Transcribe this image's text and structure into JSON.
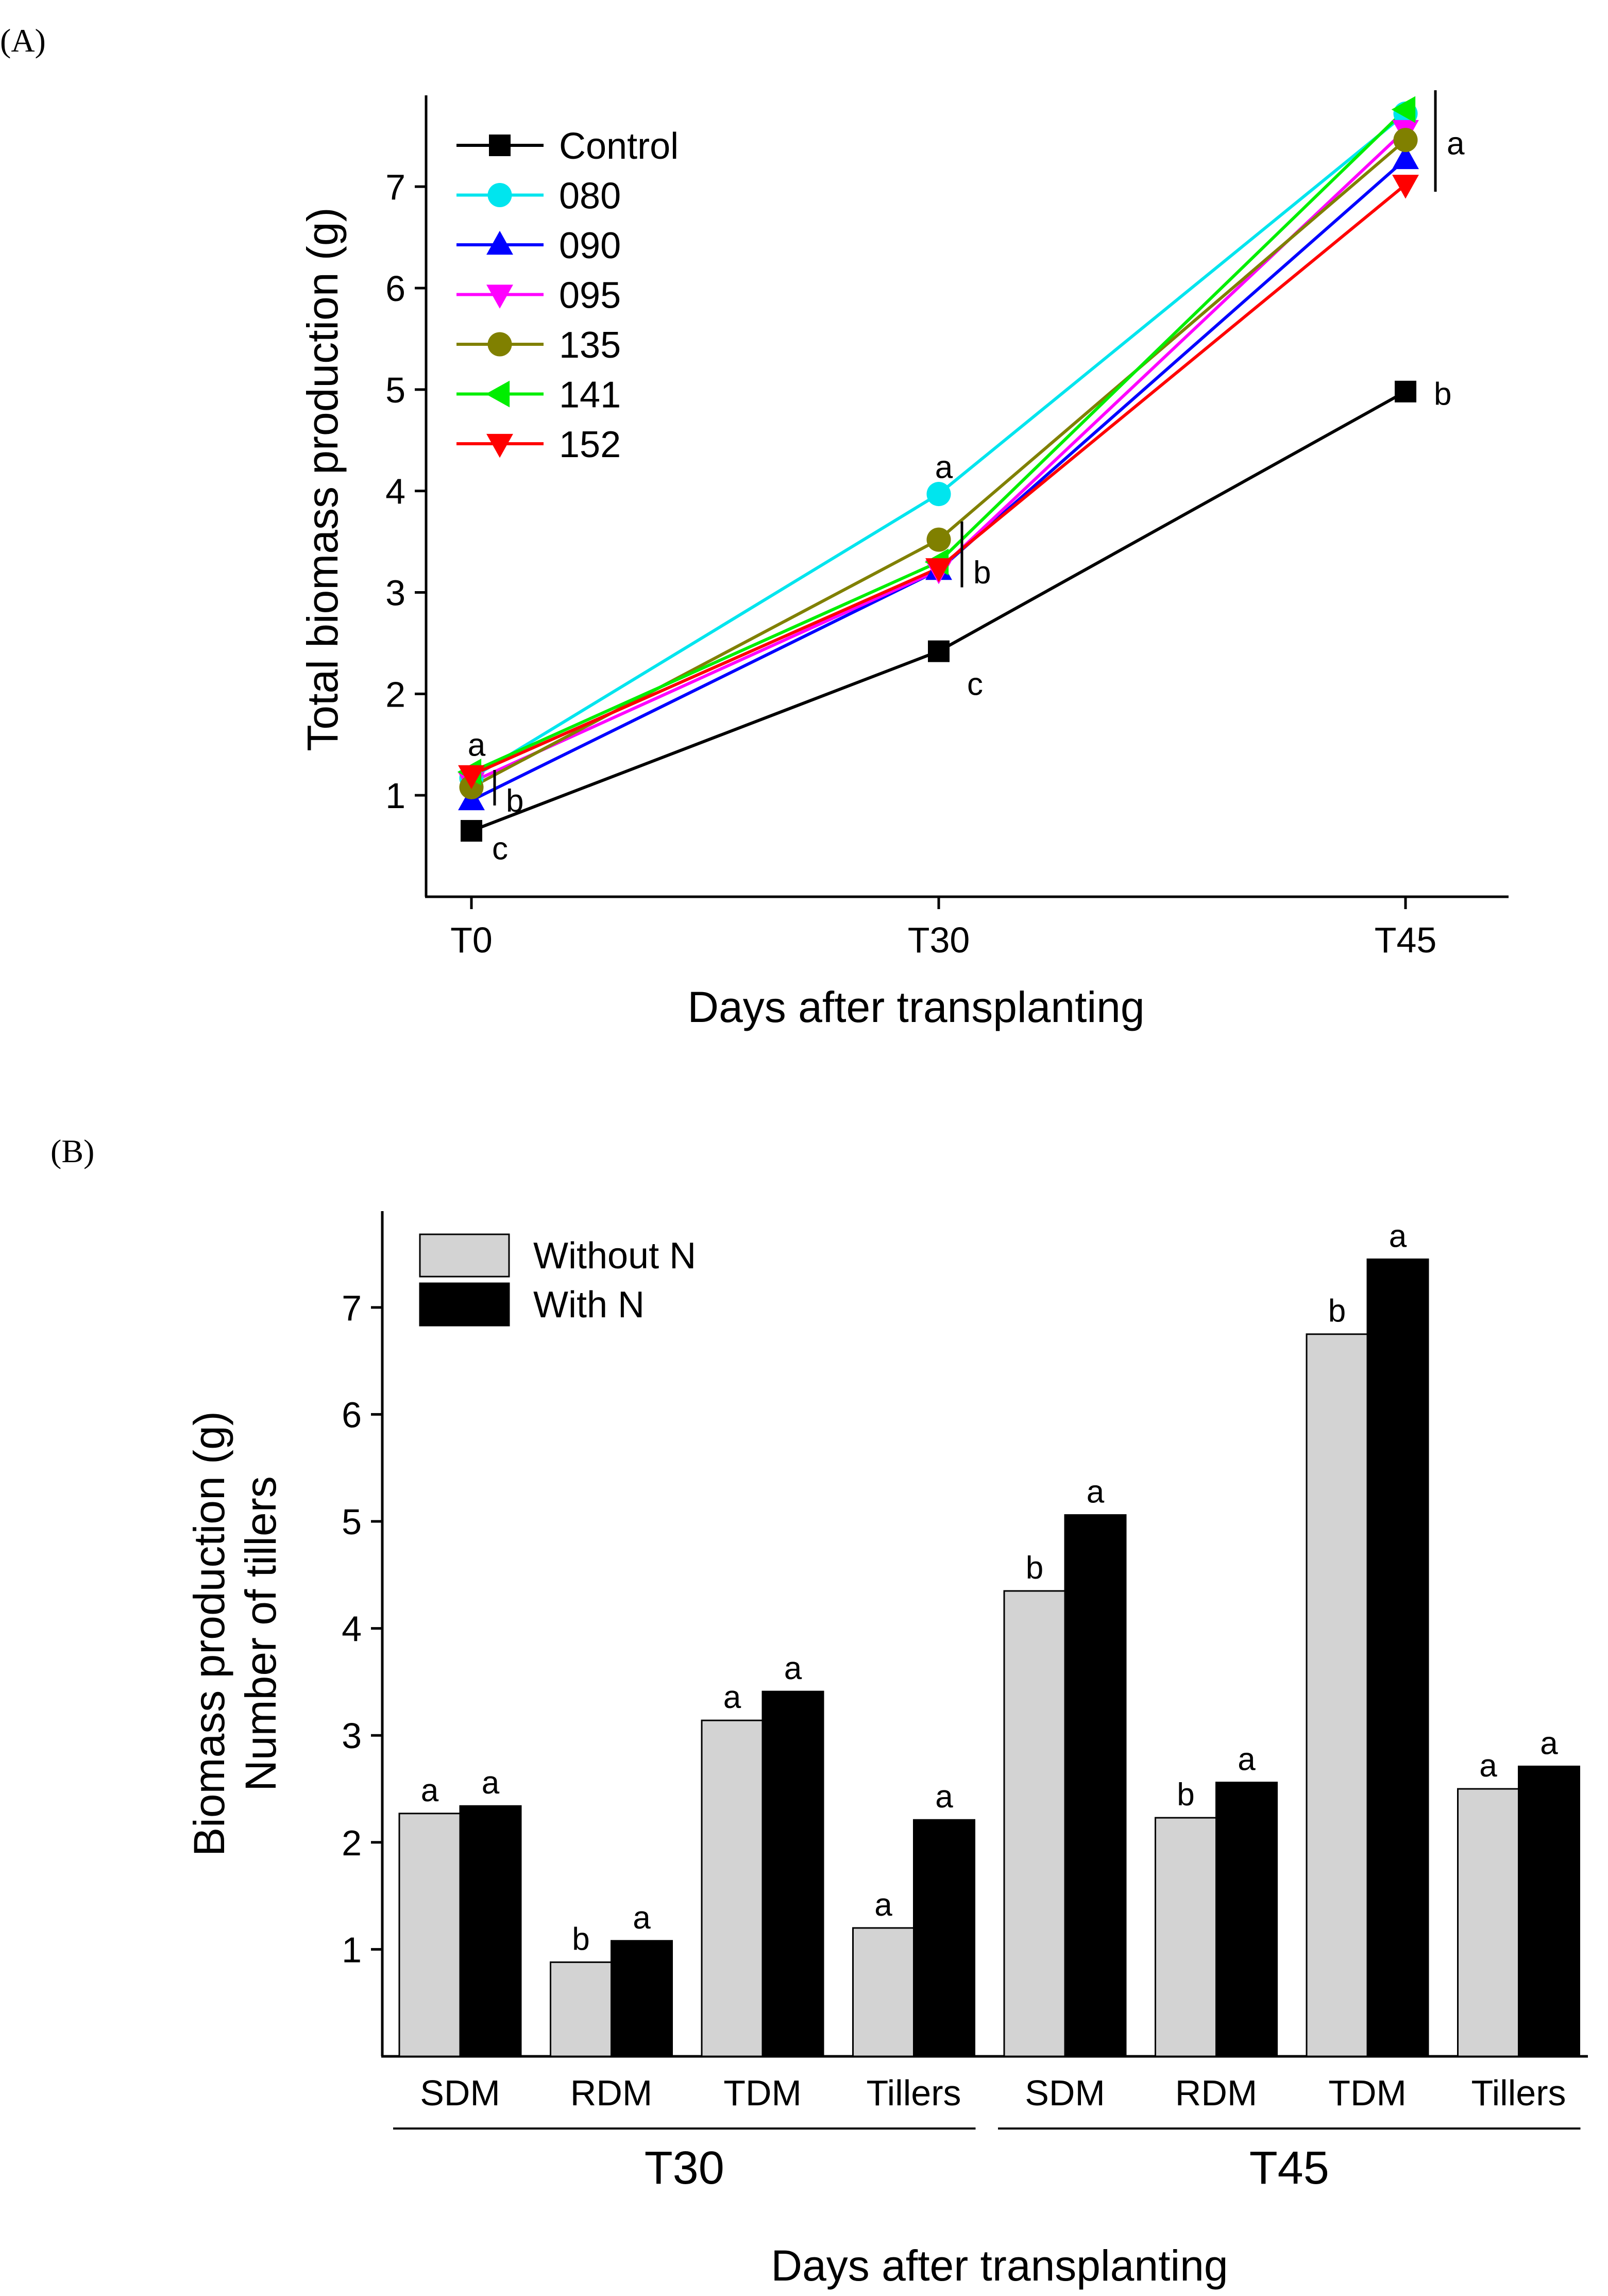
{
  "chart_data": [
    {
      "panel": "(A)",
      "type": "line",
      "xlabel": "Days after transplanting",
      "ylabel": "Total biomass production (g)",
      "categories": [
        "T0",
        "T30",
        "T45"
      ],
      "ylim": [
        0,
        7.9
      ],
      "yticks": [
        1,
        2,
        3,
        4,
        5,
        6,
        7
      ],
      "legend_position": "top-left",
      "series": [
        {
          "name": "Control",
          "color": "#000000",
          "marker": "square",
          "values": [
            0.65,
            2.42,
            4.98
          ]
        },
        {
          "name": "080",
          "color": "#00e5ee",
          "marker": "circle",
          "values": [
            1.17,
            3.97,
            7.72
          ]
        },
        {
          "name": "090",
          "color": "#0000ff",
          "marker": "triangle-up",
          "values": [
            0.95,
            3.22,
            7.27
          ]
        },
        {
          "name": "095",
          "color": "#ff00ff",
          "marker": "triangle-down",
          "values": [
            1.13,
            3.22,
            7.56
          ]
        },
        {
          "name": "135",
          "color": "#808000",
          "marker": "circle",
          "values": [
            1.08,
            3.52,
            7.46
          ]
        },
        {
          "name": "141",
          "color": "#00ee00",
          "marker": "triangle-left",
          "values": [
            1.23,
            3.3,
            7.76
          ]
        },
        {
          "name": "152",
          "color": "#ff0000",
          "marker": "triangle-down",
          "values": [
            1.2,
            3.24,
            7.02
          ]
        }
      ],
      "annotations": [
        {
          "cat": 0,
          "y": 1.5,
          "text": "a"
        },
        {
          "cat": 0,
          "y": 0.95,
          "text": "b",
          "bracket": [
            0.9,
            1.25
          ]
        },
        {
          "cat": 0,
          "y": 0.48,
          "text": "c"
        },
        {
          "cat": 1,
          "y": 4.24,
          "text": "a"
        },
        {
          "cat": 1,
          "y": 3.2,
          "text": "b",
          "bracket": [
            3.05,
            3.7
          ]
        },
        {
          "cat": 1,
          "y": 2.1,
          "text": "c"
        },
        {
          "cat": 2,
          "y": 7.43,
          "text": "a",
          "bracket": [
            6.95,
            7.95
          ]
        },
        {
          "cat": 2,
          "y": 4.96,
          "text": "b"
        }
      ]
    },
    {
      "panel": "(B)",
      "type": "bar",
      "xlabel": "Days after transplanting",
      "ylabel": "Biomass production (g)",
      "ylabel2": "Number of tillers",
      "ylim": [
        0,
        7.9
      ],
      "yticks": [
        1,
        2,
        3,
        4,
        5,
        6,
        7
      ],
      "legend_position": "top-left",
      "categories": [
        "SDM",
        "RDM",
        "TDM",
        "Tillers",
        "SDM",
        "RDM",
        "TDM",
        "Tillers"
      ],
      "groups": [
        {
          "label": "T30",
          "span": [
            0,
            3
          ]
        },
        {
          "label": "T45",
          "span": [
            4,
            7
          ]
        }
      ],
      "series": [
        {
          "name": "Without N",
          "color": "#d3d3d3",
          "values": [
            2.27,
            0.88,
            3.14,
            1.2,
            4.35,
            2.23,
            6.75,
            2.5
          ],
          "letters": [
            "a",
            "b",
            "a",
            "a",
            "b",
            "b",
            "b",
            "a"
          ]
        },
        {
          "name": "With N",
          "color": "#000000",
          "values": [
            2.34,
            1.08,
            3.41,
            2.21,
            5.06,
            2.56,
            7.45,
            2.71
          ],
          "letters": [
            "a",
            "a",
            "a",
            "a",
            "a",
            "a",
            "a",
            "a"
          ]
        }
      ]
    }
  ]
}
